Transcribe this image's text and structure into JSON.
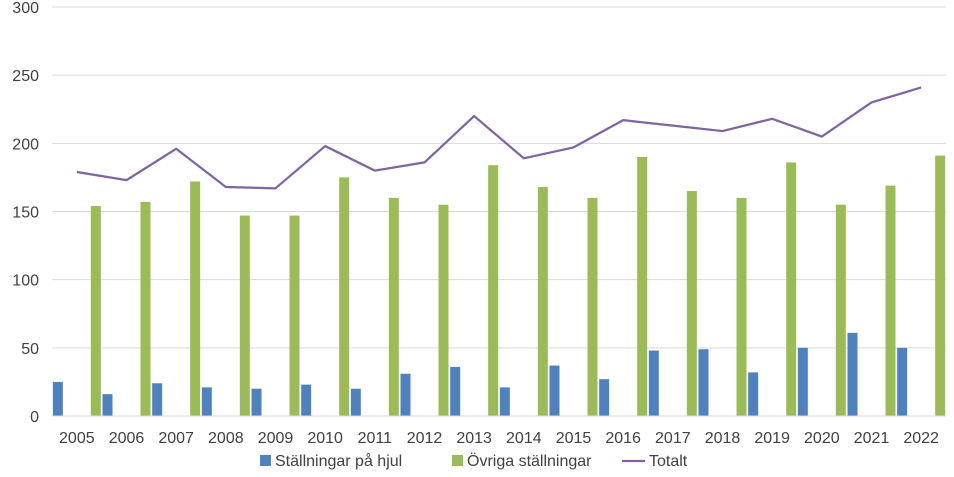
{
  "chart_data": {
    "type": "bar",
    "title": "",
    "xlabel": "",
    "ylabel": "",
    "ylim": [
      0,
      300
    ],
    "yticks": [
      0,
      50,
      100,
      150,
      200,
      250,
      300
    ],
    "grid": true,
    "legend_position": "bottom",
    "categories": [
      "2005",
      "2006",
      "2007",
      "2008",
      "2009",
      "2010",
      "2011",
      "2012",
      "2013",
      "2014",
      "2015",
      "2016",
      "2017",
      "2018",
      "2019",
      "2020",
      "2021",
      "2022"
    ],
    "series": [
      {
        "name": "Ställningar på hjul",
        "kind": "bar",
        "color": "#4f81bd",
        "values": [
          25,
          16,
          24,
          21,
          20,
          23,
          20,
          31,
          36,
          21,
          37,
          27,
          48,
          49,
          32,
          50,
          61,
          50
        ]
      },
      {
        "name": "Övriga ställningar",
        "kind": "bar",
        "color": "#9bbb59",
        "values": [
          154,
          157,
          172,
          147,
          147,
          175,
          160,
          155,
          184,
          168,
          160,
          190,
          165,
          160,
          186,
          155,
          169,
          191
        ]
      },
      {
        "name": "Totalt",
        "kind": "line",
        "color": "#8064a2",
        "values": [
          179,
          173,
          196,
          168,
          167,
          198,
          180,
          186,
          220,
          189,
          197,
          217,
          213,
          209,
          218,
          205,
          230,
          241
        ]
      }
    ]
  }
}
